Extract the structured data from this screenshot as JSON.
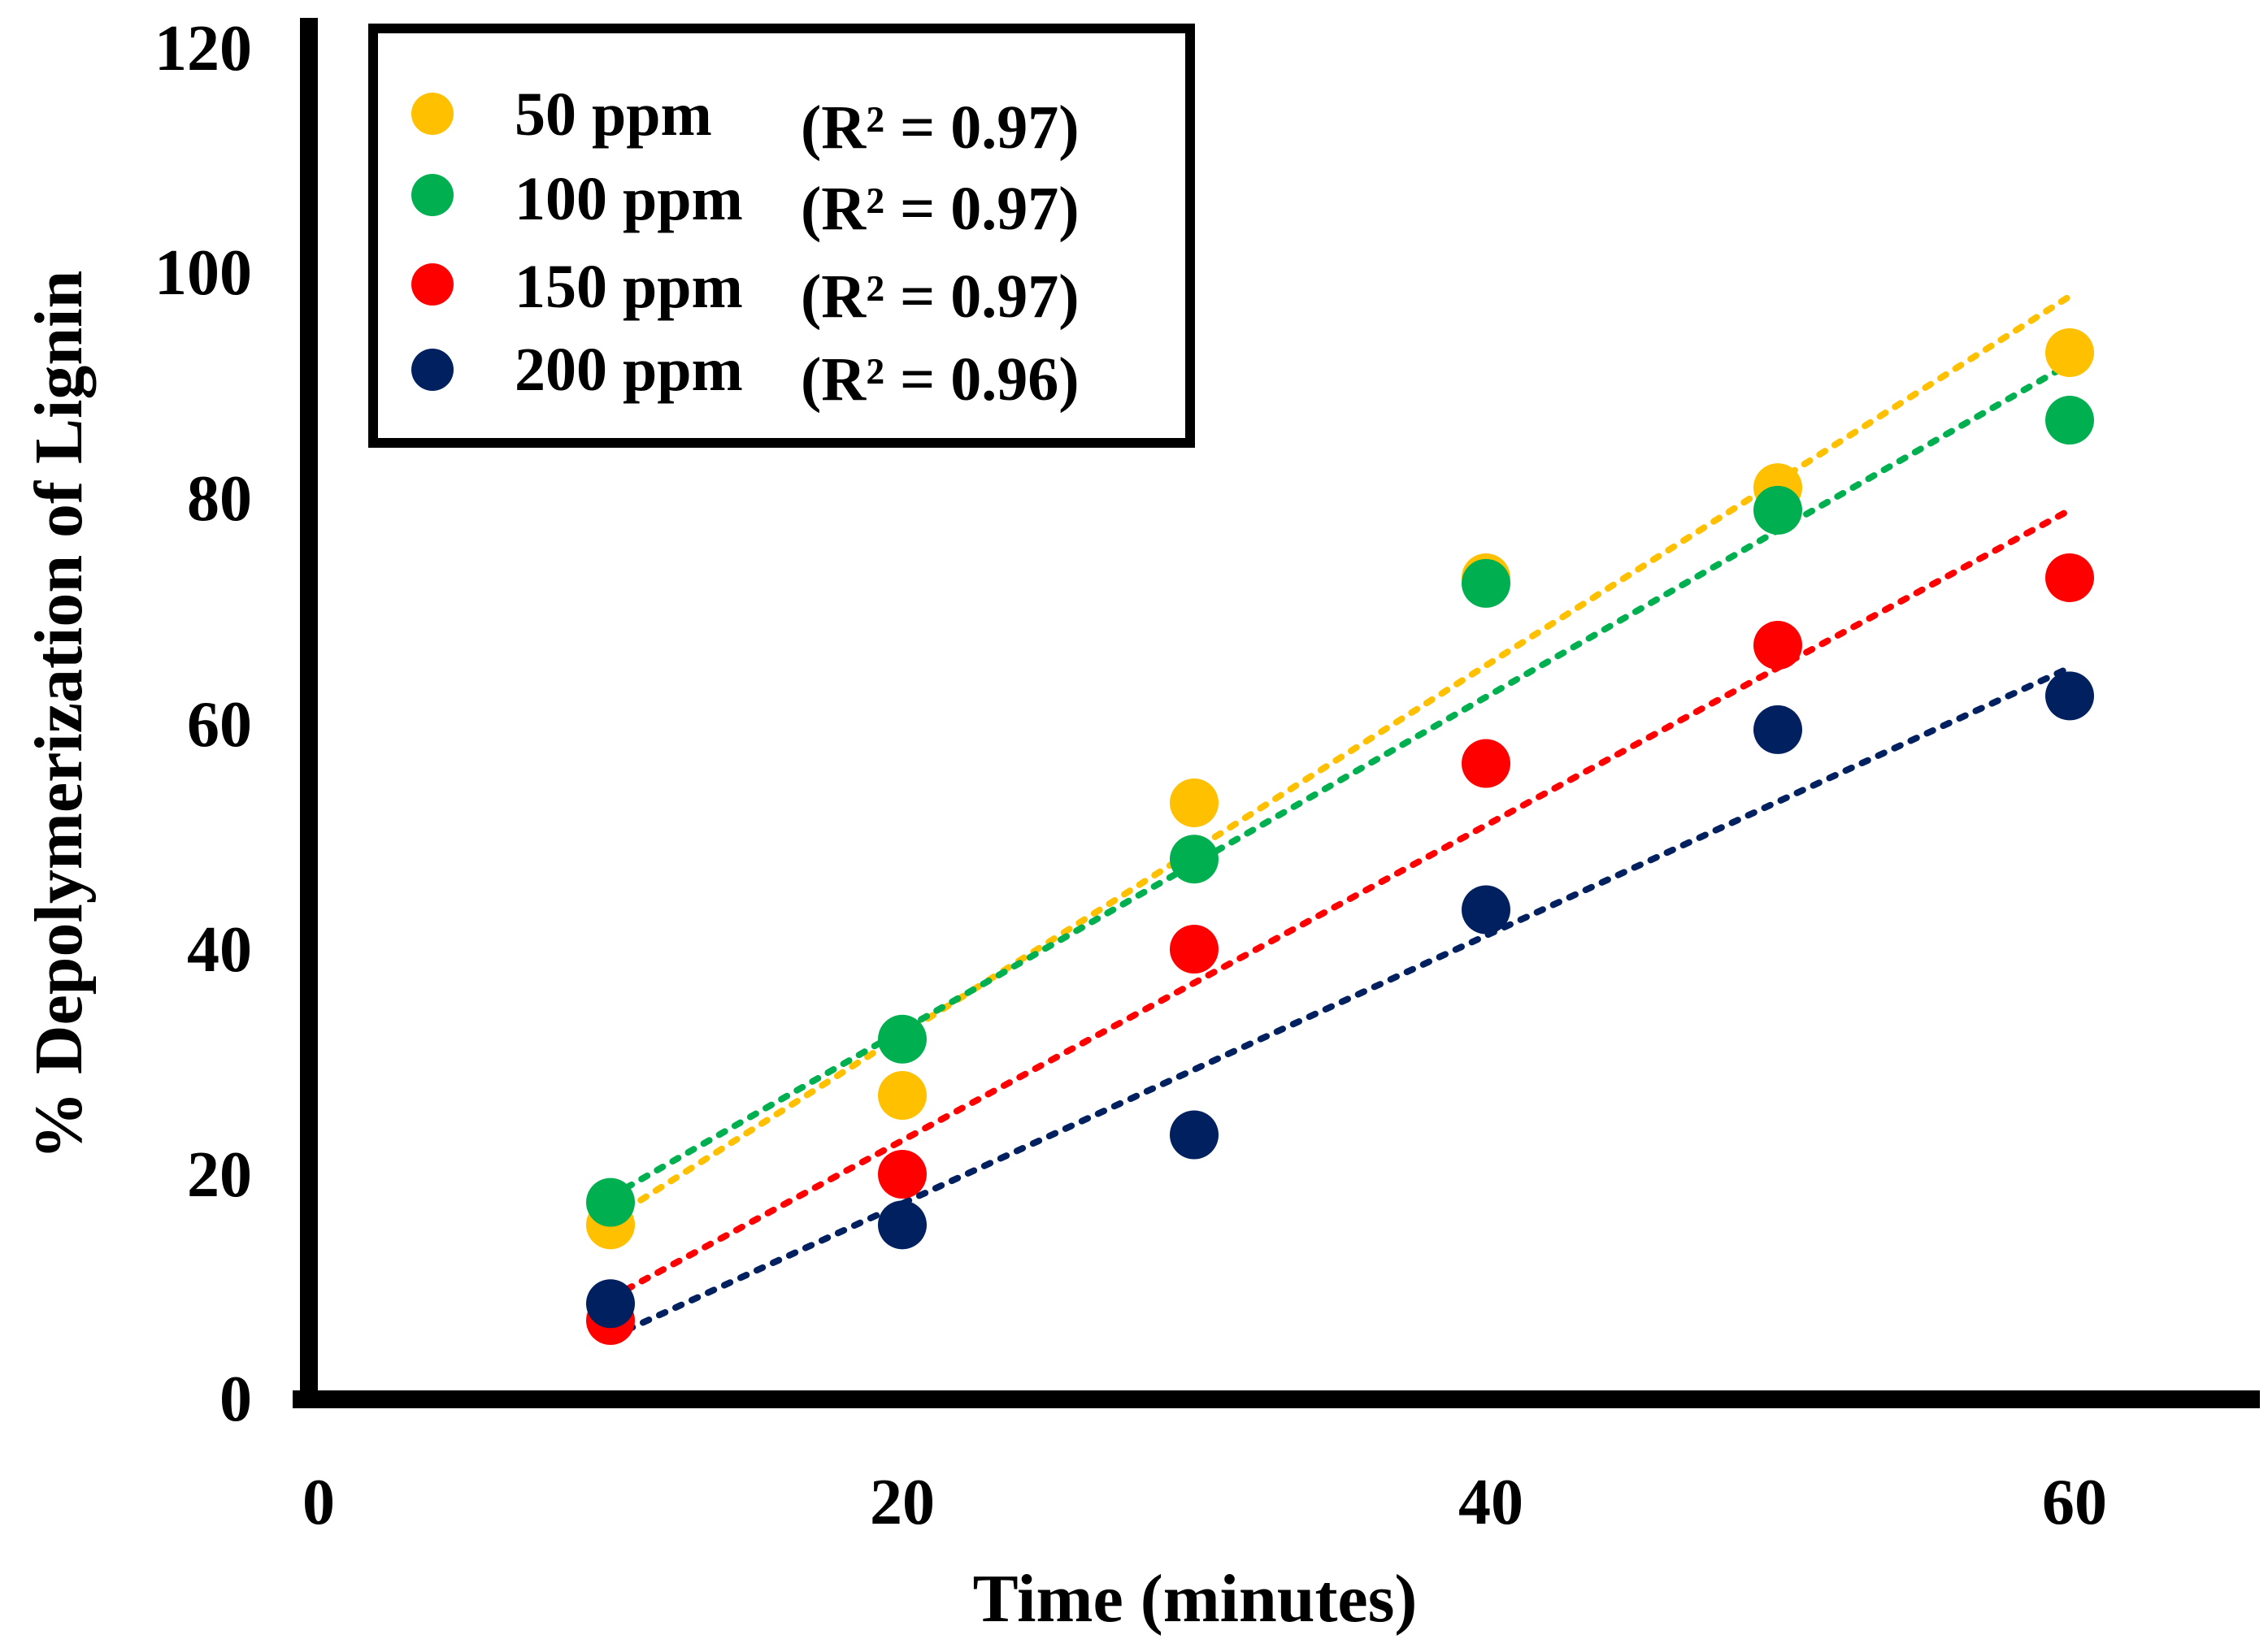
{
  "chart_data": {
    "type": "scatter",
    "title": "",
    "xlabel": "Time (minutes)",
    "ylabel": "% Depolymerization of Lignin",
    "xlim": [
      0,
      66
    ],
    "ylim": [
      0,
      120
    ],
    "x_ticks": [
      "0",
      "20",
      "40",
      "60"
    ],
    "y_ticks": [
      "0",
      "20",
      "40",
      "60",
      "80",
      "100",
      "120"
    ],
    "x": [
      10,
      20,
      30,
      40,
      50,
      60
    ],
    "trendline": "linear (dotted)",
    "legend_position": "top-left",
    "series": [
      {
        "name": "50 ppm",
        "r2_label": "(R² = 0.97)",
        "color": "#FFC000",
        "values": [
          15.5,
          27,
          53,
          73,
          81,
          93
        ],
        "fit": [
          16,
          98
        ]
      },
      {
        "name": "100 ppm",
        "r2_label": "(R² = 0.97)",
        "color": "#00B050",
        "values": [
          17.5,
          32,
          48,
          72.5,
          79,
          87
        ],
        "fit": [
          18,
          92
        ]
      },
      {
        "name": "150 ppm",
        "r2_label": "(R² = 0.97)",
        "color": "#FF0000",
        "values": [
          7,
          20,
          40,
          56.5,
          67,
          73
        ],
        "fit": [
          9,
          79
        ]
      },
      {
        "name": "200 ppm",
        "r2_label": "(R² = 0.96)",
        "color": "#002060",
        "values": [
          8.5,
          15.5,
          23.5,
          43.5,
          59.5,
          62.5
        ],
        "fit": [
          5.5,
          65
        ]
      }
    ]
  }
}
